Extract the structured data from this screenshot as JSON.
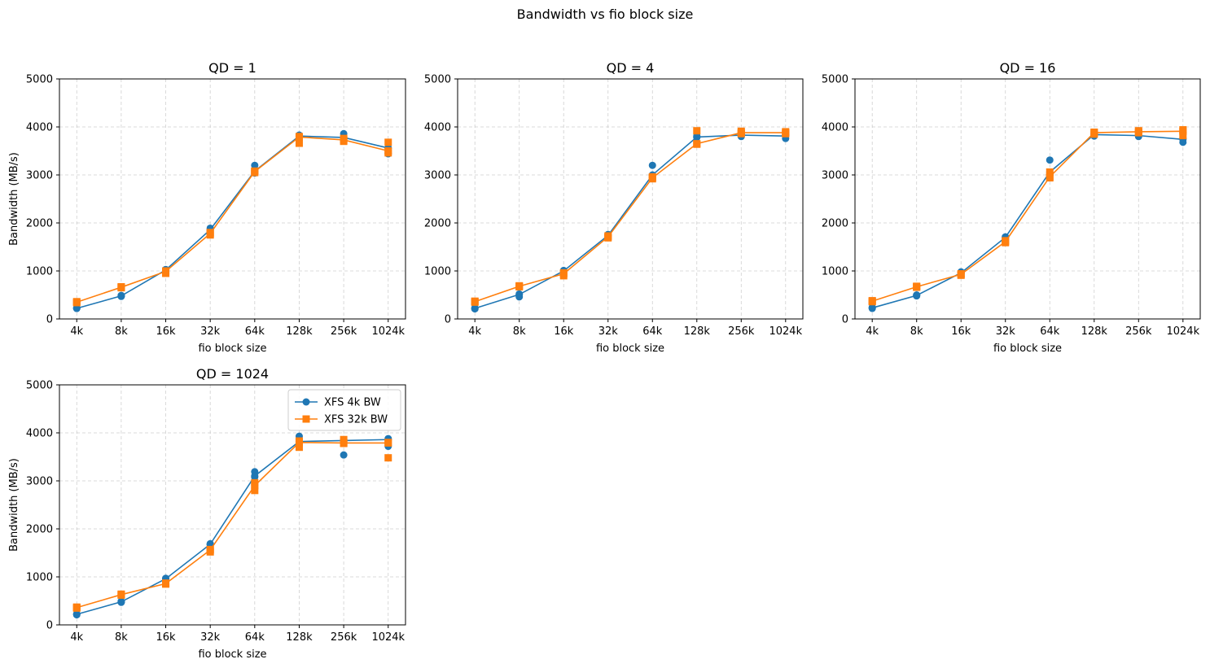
{
  "figure": {
    "suptitle": "Bandwidth vs fio block size"
  },
  "colors": {
    "xfs_4k": "#1f77b4",
    "xfs_32k": "#ff7f0e",
    "grid": "#b0b0b0"
  },
  "chart_data": [
    {
      "type": "line",
      "title": "QD = 1",
      "xlabel": "fio block size",
      "ylabel": "Bandwidth (MB/s)",
      "ylim": [
        0,
        5000
      ],
      "yticks": [
        0,
        1000,
        2000,
        3000,
        4000,
        5000
      ],
      "grid": true,
      "categories": [
        "4k",
        "8k",
        "16k",
        "32k",
        "64k",
        "128k",
        "256k",
        "1024k"
      ],
      "series": [
        {
          "name": "XFS 4k BW",
          "marker": "circle",
          "values": [
            220,
            480,
            1020,
            1860,
            3080,
            3810,
            3780,
            3560
          ],
          "points": [
            [
              220,
              230
            ],
            [
              470,
              490
            ],
            [
              1010,
              1030
            ],
            [
              1850,
              1890
            ],
            [
              3040,
              3200
            ],
            [
              3800,
              3830
            ],
            [
              3750,
              3860
            ],
            [
              3440,
              3560
            ]
          ]
        },
        {
          "name": "XFS 32k BW",
          "marker": "square",
          "values": [
            350,
            660,
            990,
            1780,
            3070,
            3790,
            3730,
            3500
          ],
          "points": [
            [
              340,
              360
            ],
            [
              650,
              670
            ],
            [
              950,
              1000
            ],
            [
              1750,
              1800
            ],
            [
              3050,
              3080
            ],
            [
              3660,
              3800
            ],
            [
              3700,
              3760
            ],
            [
              3460,
              3680
            ]
          ]
        }
      ]
    },
    {
      "type": "line",
      "title": "QD = 4",
      "xlabel": "fio block size",
      "ylabel": "",
      "ylim": [
        0,
        5000
      ],
      "yticks": [
        0,
        1000,
        2000,
        3000,
        4000,
        5000
      ],
      "grid": true,
      "categories": [
        "4k",
        "8k",
        "16k",
        "32k",
        "64k",
        "128k",
        "256k",
        "1024k"
      ],
      "series": [
        {
          "name": "XFS 4k BW",
          "marker": "circle",
          "values": [
            220,
            510,
            1000,
            1740,
            3000,
            3790,
            3830,
            3810
          ],
          "points": [
            [
              210,
              230
            ],
            [
              460,
              520
            ],
            [
              990,
              1010
            ],
            [
              1730,
              1760
            ],
            [
              2950,
              3200
            ],
            [
              3780,
              3810
            ],
            [
              3800,
              3850
            ],
            [
              3760,
              3830
            ]
          ]
        },
        {
          "name": "XFS 32k BW",
          "marker": "square",
          "values": [
            360,
            680,
            940,
            1710,
            2940,
            3650,
            3880,
            3880
          ],
          "points": [
            [
              350,
              370
            ],
            [
              670,
              690
            ],
            [
              900,
              960
            ],
            [
              1690,
              1730
            ],
            [
              2920,
              2960
            ],
            [
              3640,
              3920
            ],
            [
              3860,
              3910
            ],
            [
              3860,
              3900
            ]
          ]
        }
      ]
    },
    {
      "type": "line",
      "title": "QD = 16",
      "xlabel": "fio block size",
      "ylabel": "",
      "ylim": [
        0,
        5000
      ],
      "yticks": [
        0,
        1000,
        2000,
        3000,
        4000,
        5000
      ],
      "grid": true,
      "categories": [
        "4k",
        "8k",
        "16k",
        "32k",
        "64k",
        "128k",
        "256k",
        "1024k"
      ],
      "series": [
        {
          "name": "XFS 4k BW",
          "marker": "circle",
          "values": [
            230,
            490,
            960,
            1700,
            3060,
            3840,
            3820,
            3740
          ],
          "points": [
            [
              220,
              240
            ],
            [
              480,
              500
            ],
            [
              950,
              980
            ],
            [
              1690,
              1710
            ],
            [
              3000,
              3310
            ],
            [
              3810,
              3860
            ],
            [
              3800,
              3920
            ],
            [
              3680,
              3760
            ]
          ]
        },
        {
          "name": "XFS 32k BW",
          "marker": "square",
          "values": [
            370,
            670,
            930,
            1610,
            2960,
            3880,
            3900,
            3910
          ],
          "points": [
            [
              360,
              380
            ],
            [
              660,
              680
            ],
            [
              910,
              940
            ],
            [
              1590,
              1630
            ],
            [
              2940,
              3060
            ],
            [
              3850,
              3890
            ],
            [
              3880,
              3920
            ],
            [
              3820,
              3940
            ]
          ]
        }
      ]
    },
    {
      "type": "line",
      "title": "QD = 1024",
      "xlabel": "fio block size",
      "ylabel": "Bandwidth (MB/s)",
      "ylim": [
        0,
        5000
      ],
      "yticks": [
        0,
        1000,
        2000,
        3000,
        4000,
        5000
      ],
      "grid": true,
      "legend": "top-right",
      "categories": [
        "4k",
        "8k",
        "16k",
        "32k",
        "64k",
        "128k",
        "256k",
        "1024k"
      ],
      "series": [
        {
          "name": "XFS 4k BW",
          "marker": "circle",
          "values": [
            220,
            480,
            960,
            1680,
            3100,
            3820,
            3840,
            3860
          ],
          "points": [
            [
              210,
              230
            ],
            [
              470,
              490
            ],
            [
              950,
              970
            ],
            [
              1670,
              1690
            ],
            [
              3080,
              3190
            ],
            [
              3800,
              3930
            ],
            [
              3540,
              3860
            ],
            [
              3720,
              3880
            ]
          ]
        },
        {
          "name": "XFS 32k BW",
          "marker": "square",
          "values": [
            360,
            630,
            860,
            1560,
            2900,
            3800,
            3790,
            3790
          ],
          "points": [
            [
              350,
              370
            ],
            [
              620,
              640
            ],
            [
              850,
              870
            ],
            [
              1520,
              1570
            ],
            [
              2800,
              2960
            ],
            [
              3700,
              3830
            ],
            [
              3780,
              3860
            ],
            [
              3480,
              3800
            ]
          ]
        }
      ]
    }
  ]
}
